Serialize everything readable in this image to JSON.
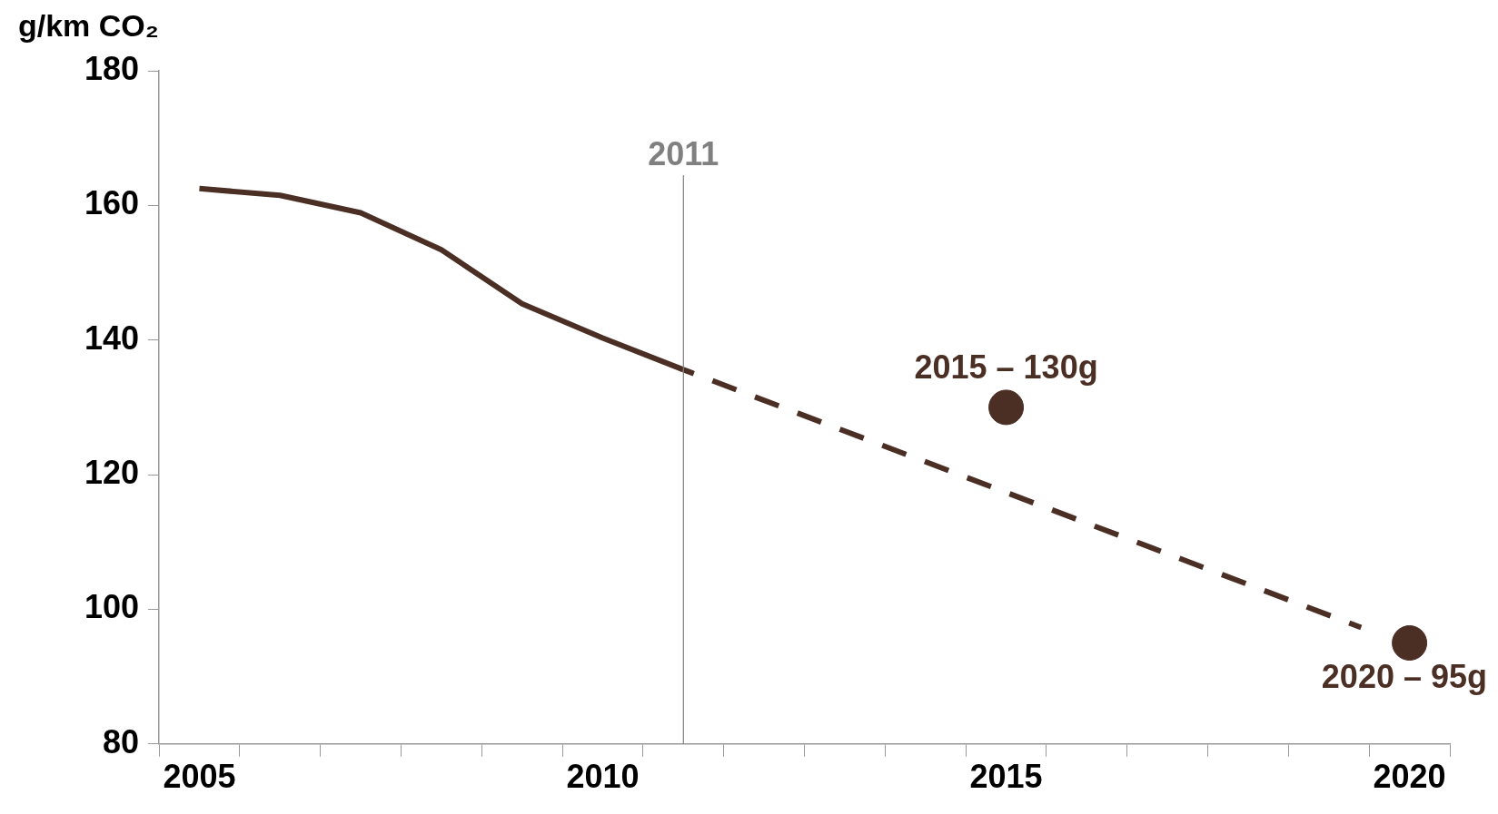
{
  "chart_data": {
    "type": "line",
    "ylabel": "g/km CO₂",
    "series": [
      {
        "line_style": "solid",
        "color": "#4b2f25",
        "x": [
          2005,
          2006,
          2007,
          2008,
          2009,
          2010,
          2011
        ],
        "values": [
          162.5,
          161.5,
          158.9,
          153.4,
          145.4,
          140.3,
          135.6
        ]
      },
      {
        "type": "line",
        "line_style": "dashed",
        "color": "#4b2f25",
        "x": [
          2011,
          2019.4
        ],
        "values": [
          135.6,
          97.3
        ]
      },
      {
        "type": "scatter",
        "marker": "circle",
        "color": "#4b2f25",
        "x": [
          2015,
          2020
        ],
        "values": [
          130,
          95
        ]
      }
    ],
    "xlim": [
      2004.5,
      2020.5
    ],
    "xticks": [
      {
        "value": 2004.5,
        "label": null
      },
      2005,
      {
        "value": 2005.5,
        "label": null
      },
      {
        "value": 2006.5,
        "label": null
      },
      {
        "value": 2007.5,
        "label": null
      },
      {
        "value": 2008.5,
        "label": null
      },
      {
        "value": 2009.5,
        "label": null
      },
      2010,
      {
        "value": 2010.5,
        "label": null
      },
      {
        "value": 2011.5,
        "label": null
      },
      {
        "value": 2012.5,
        "label": null
      },
      {
        "value": 2013.5,
        "label": null
      },
      {
        "value": 2014.5,
        "label": null
      },
      2015,
      {
        "value": 2015.5,
        "label": null
      },
      {
        "value": 2016.5,
        "label": null
      },
      {
        "value": 2017.5,
        "label": null
      },
      {
        "value": 2018.5,
        "label": null
      },
      {
        "value": 2019.5,
        "label": null
      },
      2020,
      {
        "value": 2020.5,
        "label": null
      }
    ],
    "ylim": [
      80,
      180
    ],
    "yticks": [
      80,
      100,
      120,
      140,
      160,
      180
    ],
    "grid": false,
    "legend": false,
    "ref_lines": [
      {
        "axis": "x",
        "value": 2011,
        "label": "2011",
        "color": "#808080"
      }
    ],
    "annotations": [
      {
        "text": "2015 – 130g",
        "x": 2015,
        "y": 130
      },
      {
        "text": "2020 – 95g",
        "x": 2020,
        "y": 95
      }
    ]
  }
}
